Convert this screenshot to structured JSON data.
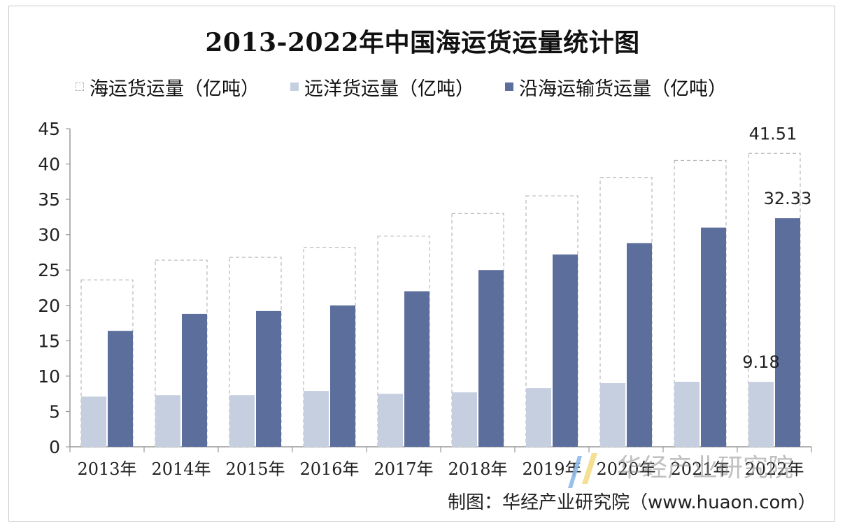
{
  "colors": {
    "total_border": "#b8b8b8",
    "ocean": "#c6cfe0",
    "coastal": "#5b6e9c",
    "axis": "#999999",
    "text": "#111111"
  },
  "watermark": {
    "text": "华经产业研究院"
  },
  "source": "制图：华经产业研究院（www.huaon.com）",
  "chart_data": {
    "type": "bar",
    "title": "2013-2022年中国海运货运量统计图",
    "categories": [
      "2013年",
      "2014年",
      "2015年",
      "2016年",
      "2017年",
      "2018年",
      "2019年",
      "2020年",
      "2021年",
      "2022年"
    ],
    "series": [
      {
        "name": "海运货运量（亿吨）",
        "values": [
          23.6,
          26.4,
          26.8,
          28.2,
          29.8,
          33.0,
          35.5,
          38.1,
          40.5,
          41.51
        ]
      },
      {
        "name": "远洋货运量（亿吨）",
        "values": [
          7.1,
          7.3,
          7.3,
          7.9,
          7.5,
          7.7,
          8.3,
          9.0,
          9.2,
          9.18
        ]
      },
      {
        "name": "沿海运输货运量（亿吨）",
        "values": [
          16.4,
          18.8,
          19.2,
          20.0,
          22.0,
          25.0,
          27.2,
          28.8,
          31.0,
          32.33
        ]
      }
    ],
    "data_labels": [
      "41.51",
      "9.18",
      "32.33"
    ],
    "ylim": [
      0,
      45
    ],
    "yticks": [
      "0",
      "5",
      "10",
      "15",
      "20",
      "25",
      "30",
      "35",
      "40",
      "45"
    ],
    "grid": false,
    "legend_position": "top"
  }
}
